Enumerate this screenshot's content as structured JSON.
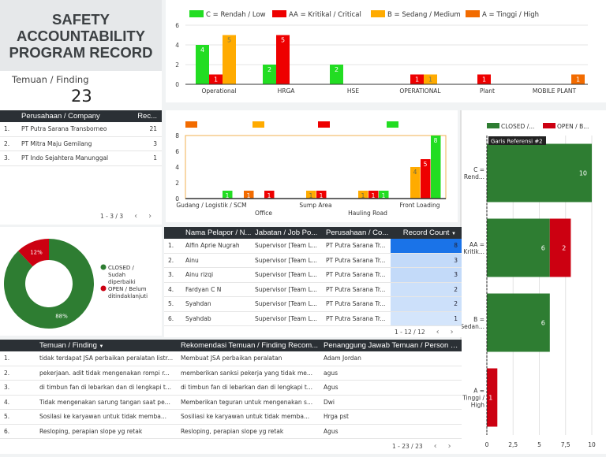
{
  "title": "SAFETY\nACCOUNTABILITY\nPROGRAM RECORD",
  "kpi": {
    "label": "Temuan / Finding",
    "value": "23"
  },
  "company_table": {
    "headers": [
      "Perusahaan / Company",
      "Rec..."
    ],
    "rows": [
      [
        "1.",
        "PT Putra Sarana Transborneo",
        "21"
      ],
      [
        "2.",
        "PT Mitra Maju Gemilang",
        "3"
      ],
      [
        "3.",
        "PT Indo Sejahtera Manunggal",
        "1"
      ]
    ],
    "pagination": "1 - 3 / 3"
  },
  "colors": {
    "low": "#22dd22",
    "critical": "#ee0000",
    "medium": "#ffab00",
    "high": "#f26b00",
    "closed": "#2e7d32",
    "open": "#cc0011",
    "header": "#2b3035",
    "count_high": "#1a73e8"
  },
  "chart_data": [
    {
      "type": "bar",
      "legend": [
        "C = Rendah / Low",
        "AA = Kritikal / Critical",
        "B = Sedang / Medium",
        "A = Tinggi / High"
      ],
      "categories": [
        "Operational",
        "HRGA",
        "HSE",
        "OPERATIONAL",
        "Plant",
        "MOBILE PLANT"
      ],
      "series": [
        {
          "name": "C = Rendah / Low",
          "values": [
            4,
            2,
            2,
            0,
            0,
            0
          ]
        },
        {
          "name": "AA = Kritikal / Critical",
          "values": [
            1,
            5,
            0,
            1,
            1,
            0
          ]
        },
        {
          "name": "B = Sedang / Medium",
          "values": [
            5,
            0,
            0,
            1,
            0,
            0
          ]
        },
        {
          "name": "A = Tinggi / High",
          "values": [
            0,
            0,
            0,
            0,
            0,
            1
          ]
        }
      ],
      "ylim": [
        0,
        6
      ],
      "yticks": [
        "0",
        "2",
        "4",
        "6"
      ],
      "grid": true,
      "legend_position": "top"
    },
    {
      "type": "bar",
      "categories": [
        "Gudang / Logistik / SCM",
        "Office",
        "Sump Area",
        "Hauling Road",
        "Front Loading"
      ],
      "series": [
        {
          "values": [
            0,
            1,
            0,
            0,
            0
          ]
        },
        {
          "values": [
            0,
            0,
            1,
            1,
            4
          ]
        },
        {
          "values": [
            0,
            1,
            1,
            1,
            5
          ]
        },
        {
          "values": [
            1,
            0,
            0,
            1,
            8
          ]
        }
      ],
      "ylim": [
        0,
        8
      ],
      "yticks": [
        "0",
        "2",
        "4",
        "6",
        "8"
      ],
      "legend_position": "top"
    },
    {
      "type": "bar",
      "orientation": "horizontal",
      "stacked": true,
      "legend": [
        "CLOSED /...",
        "OPEN / B..."
      ],
      "categories": [
        "C = Rend...",
        "AA = Kritik...",
        "B = Sedan...",
        "A = Tinggi / High"
      ],
      "series": [
        {
          "name": "CLOSED /...",
          "values": [
            10,
            6,
            6,
            0
          ]
        },
        {
          "name": "OPEN / B...",
          "values": [
            0,
            2,
            0,
            1
          ]
        }
      ],
      "xlim": [
        0,
        10
      ],
      "xticks": [
        "0",
        "2,5",
        "5",
        "7,5",
        "10"
      ],
      "reference_line": "Garis Referensi #2",
      "legend_position": "top"
    },
    {
      "type": "pie",
      "donut": true,
      "slices": [
        {
          "label": "CLOSED / Sudah diperbaiki",
          "value": 88,
          "text": "88%"
        },
        {
          "label": "OPEN / Belum ditindaklanjuti",
          "value": 12,
          "text": "12%"
        }
      ],
      "legend_position": "right"
    }
  ],
  "reporter_table": {
    "headers": [
      "Nama Pelapor / N...",
      "Jabatan / Job Po...",
      "Perusahaan / Co...",
      "Record Count"
    ],
    "rows": [
      [
        "1.",
        "Alfin Aprie Nugrah",
        "Supervisor [Team L...",
        "PT Putra Sarana Tr...",
        "8"
      ],
      [
        "2.",
        "Ainu",
        "Supervisor [Team L...",
        "PT Putra Sarana Tr...",
        "3"
      ],
      [
        "3.",
        "Ainu rizqi",
        "Supervisor [Team L...",
        "PT Putra Sarana Tr...",
        "3"
      ],
      [
        "4.",
        "Fardyan C N",
        "Supervisor [Team L...",
        "PT Putra Sarana Tr...",
        "2"
      ],
      [
        "5.",
        "Syahdan",
        "Supervisor [Team L...",
        "PT Putra Sarana Tr...",
        "2"
      ],
      [
        "6.",
        "Syahdab",
        "Supervisor [Team L...",
        "PT Putra Sarana Tr...",
        "1"
      ]
    ],
    "pagination": "1 - 12 / 12"
  },
  "findings_table": {
    "headers": [
      "Temuan / Finding",
      "Rekomendasi Temuan / Finding Recom...",
      "Penanggung Jawab Temuan / Person In ..."
    ],
    "rows": [
      [
        "1.",
        "tidak terdapat JSA perbaikan peralatan listr...",
        "Membuat JSA perbaikan peralatan",
        "Adam Jordan"
      ],
      [
        "2.",
        "pekerjaan. adit tidak mengenakan rompi r...",
        "memberikan sanksi pekerja yang tidak me...",
        "agus"
      ],
      [
        "3.",
        "di timbun fan di lebarkan dan di lengkapi t...",
        "di timbun fan di lebarkan dan di lengkapi t...",
        "Agus"
      ],
      [
        "4.",
        "Tidak mengenakan sarung tangan saat pe...",
        "Memberikan teguran untuk mengenakan s...",
        "Dwi"
      ],
      [
        "5.",
        "Sosilasi ke karyawan untuk tidak memba...",
        "Sosiliasi ke karyawan untuk tidak memba...",
        "Hrga pst"
      ],
      [
        "6.",
        "Resloping, perapian slope yg retak",
        "Resloping, perapian slope yg retak",
        "Agus"
      ]
    ],
    "pagination": "1 - 23 / 23"
  }
}
